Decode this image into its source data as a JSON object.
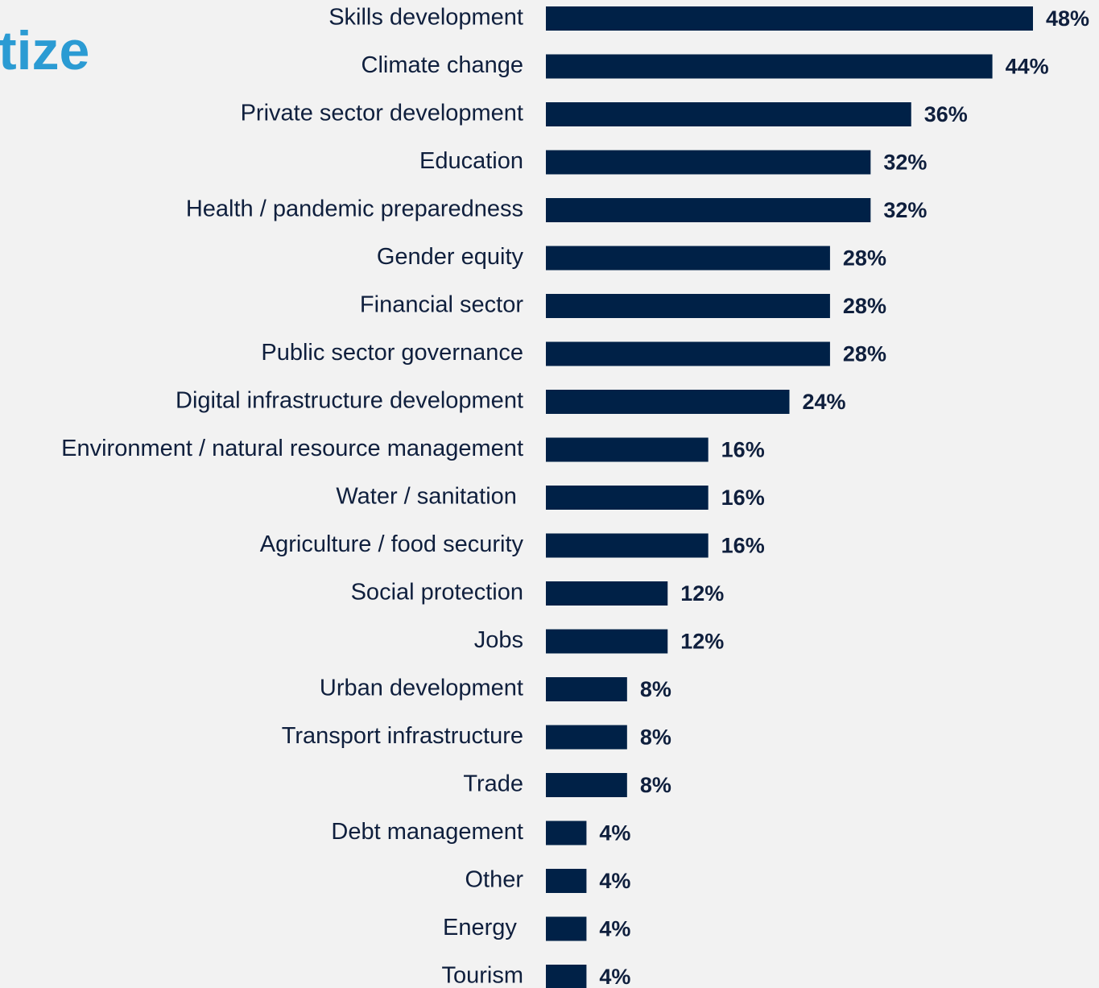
{
  "chart_data": {
    "type": "bar",
    "orientation": "horizontal",
    "title": "tize",
    "categories": [
      "Skills development",
      "Climate change",
      "Private sector development",
      "Education",
      "Health / pandemic preparedness",
      "Gender equity",
      "Financial sector",
      "Public sector governance",
      "Digital infrastructure development",
      "Environment / natural resource management",
      "Water / sanitation ",
      "Agriculture / food security",
      "Social protection",
      "Jobs",
      "Urban development",
      "Transport infrastructure",
      "Trade",
      "Debt management",
      "Other",
      "Energy ",
      "Tourism"
    ],
    "values": [
      48,
      44,
      36,
      32,
      32,
      28,
      28,
      28,
      24,
      16,
      16,
      16,
      12,
      12,
      8,
      8,
      8,
      4,
      4,
      4,
      4
    ],
    "value_labels": [
      "48%",
      "44%",
      "36%",
      "32%",
      "32%",
      "28%",
      "28%",
      "28%",
      "24%",
      "16%",
      "16%",
      "16%",
      "12%",
      "12%",
      "8%",
      "8%",
      "8%",
      "4%",
      "4%",
      "4%",
      "4%"
    ],
    "color": "#002147"
  }
}
